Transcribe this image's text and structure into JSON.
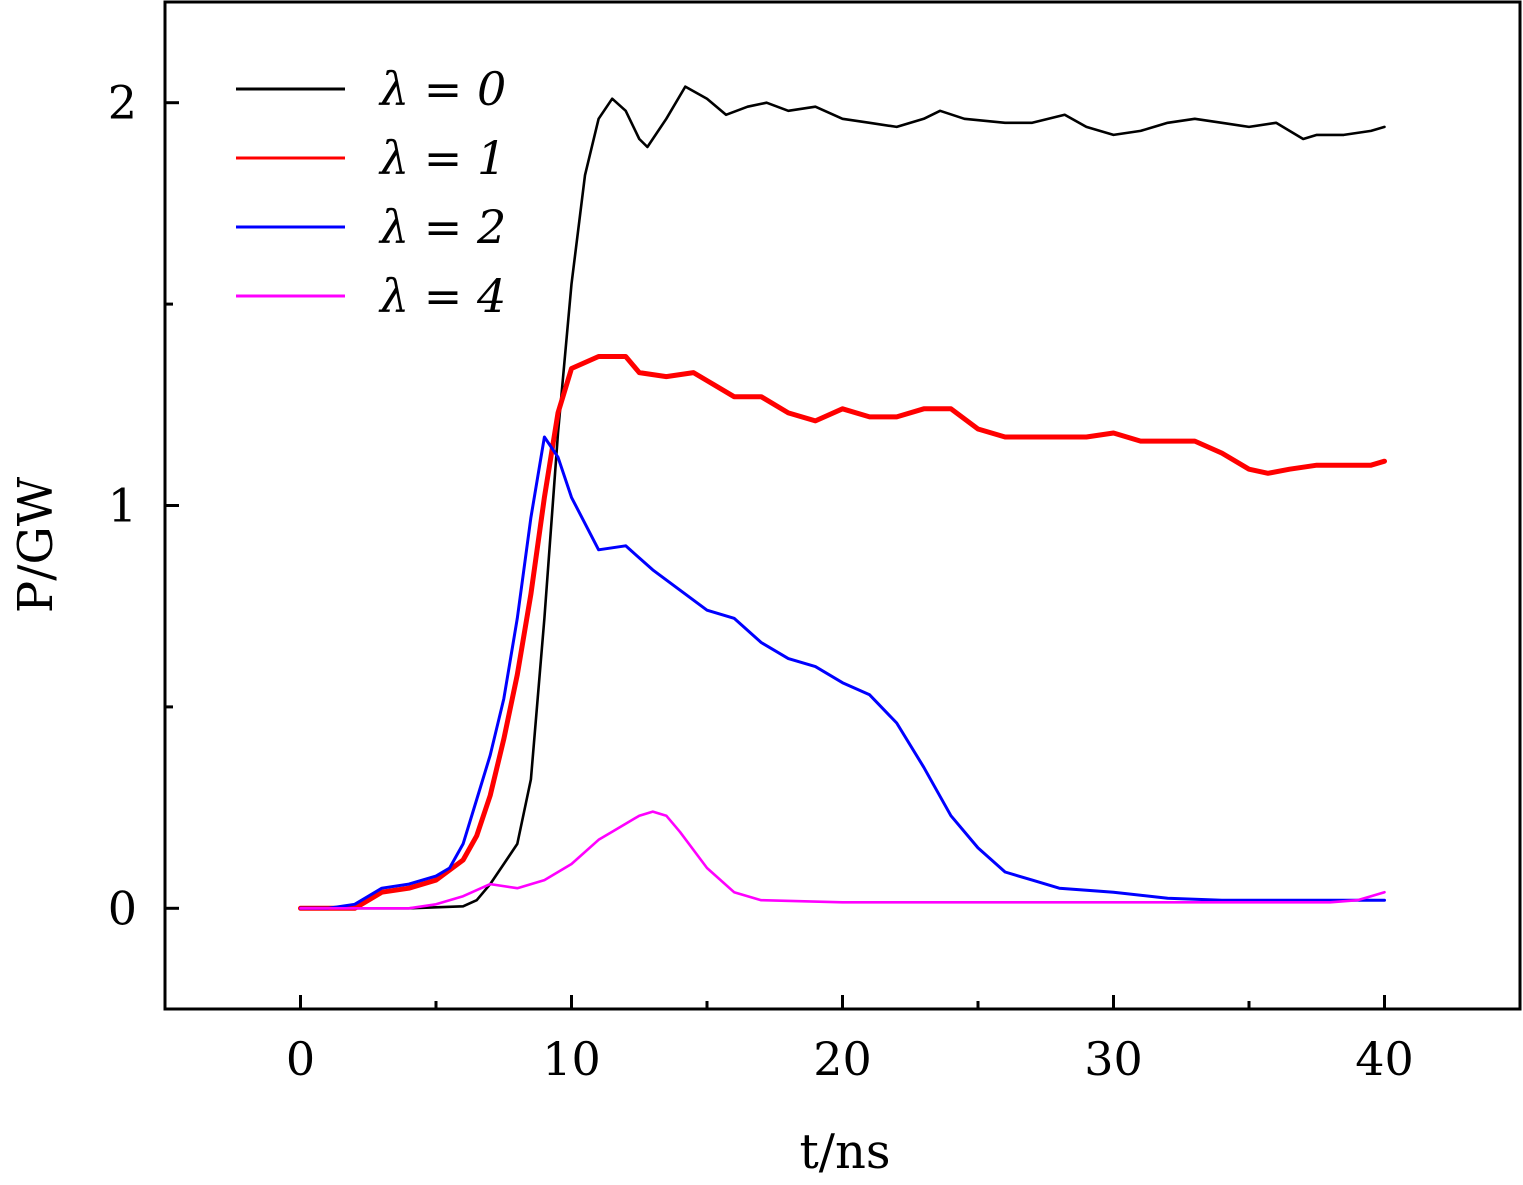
{
  "chart_data": {
    "type": "line",
    "xlabel": "t/ns",
    "ylabel": "P/GW",
    "xlim": [
      -5,
      45
    ],
    "ylim": [
      -0.25,
      2.25
    ],
    "x_ticks": [
      0,
      10,
      20,
      30,
      40
    ],
    "x_minor_ticks": [
      5,
      15,
      25,
      35
    ],
    "y_ticks": [
      0,
      1,
      2
    ],
    "y_minor_ticks": [
      0.5,
      1.5
    ],
    "legend": "top-left",
    "grid": false,
    "series": [
      {
        "name": "λ = 0",
        "color": "#000000",
        "x": [
          0,
          2,
          4,
          6,
          6.5,
          7,
          7.5,
          8,
          8.5,
          9,
          9.5,
          10,
          10.5,
          11,
          11.5,
          12,
          12.5,
          12.8,
          13.5,
          14.2,
          15,
          15.7,
          16.5,
          17.2,
          18,
          19,
          20,
          21,
          22,
          23,
          23.6,
          24.5,
          26,
          27,
          28.2,
          29,
          30,
          31,
          32,
          33,
          34,
          35,
          36,
          37,
          37.5,
          38.5,
          39.5,
          40
        ],
        "y": [
          0,
          0,
          0,
          0.005,
          0.02,
          0.06,
          0.11,
          0.16,
          0.32,
          0.72,
          1.18,
          1.55,
          1.82,
          1.96,
          2.01,
          1.98,
          1.91,
          1.89,
          1.96,
          2.04,
          2.01,
          1.97,
          1.99,
          2.0,
          1.98,
          1.99,
          1.96,
          1.95,
          1.94,
          1.96,
          1.98,
          1.96,
          1.95,
          1.95,
          1.97,
          1.94,
          1.92,
          1.93,
          1.95,
          1.96,
          1.95,
          1.94,
          1.95,
          1.91,
          1.92,
          1.92,
          1.93,
          1.94
        ]
      },
      {
        "name": "λ = 1",
        "color": "#ff0000",
        "x": [
          0,
          1,
          2,
          3,
          4,
          5,
          6,
          6.5,
          7,
          7.5,
          8,
          8.5,
          9,
          9.5,
          10,
          11,
          12,
          12.5,
          13.5,
          14.5,
          15,
          16,
          17,
          18,
          19,
          20,
          21,
          22,
          23,
          24,
          25,
          26,
          27,
          28,
          29,
          30,
          31,
          32,
          33,
          34,
          35,
          35.7,
          36.5,
          37.5,
          38.5,
          39.5,
          40
        ],
        "y": [
          0,
          0,
          0,
          0.04,
          0.05,
          0.07,
          0.12,
          0.18,
          0.28,
          0.42,
          0.58,
          0.78,
          1.02,
          1.23,
          1.34,
          1.37,
          1.37,
          1.33,
          1.32,
          1.33,
          1.31,
          1.27,
          1.27,
          1.23,
          1.21,
          1.24,
          1.22,
          1.22,
          1.24,
          1.24,
          1.19,
          1.17,
          1.17,
          1.17,
          1.17,
          1.18,
          1.16,
          1.16,
          1.16,
          1.13,
          1.09,
          1.08,
          1.09,
          1.1,
          1.1,
          1.1,
          1.11
        ]
      },
      {
        "name": "λ = 2",
        "color": "#0000ff",
        "x": [
          0,
          1,
          2,
          3,
          4,
          5,
          5.5,
          6,
          6.5,
          7,
          7.5,
          8,
          8.5,
          9,
          9.5,
          10,
          11,
          12,
          13,
          14,
          15,
          16,
          17,
          18,
          19,
          20,
          21,
          22,
          23,
          24,
          25,
          26,
          27,
          28,
          30,
          32,
          34,
          36,
          38,
          40
        ],
        "y": [
          0,
          0,
          0.01,
          0.05,
          0.06,
          0.08,
          0.1,
          0.16,
          0.27,
          0.38,
          0.52,
          0.72,
          0.97,
          1.17,
          1.12,
          1.02,
          0.89,
          0.9,
          0.84,
          0.79,
          0.74,
          0.72,
          0.66,
          0.62,
          0.6,
          0.56,
          0.53,
          0.46,
          0.35,
          0.23,
          0.15,
          0.09,
          0.07,
          0.05,
          0.04,
          0.025,
          0.02,
          0.02,
          0.02,
          0.02
        ]
      },
      {
        "name": "λ = 4",
        "color": "#ff00ff",
        "x": [
          0,
          2,
          4,
          5,
          6,
          7,
          8,
          9,
          10,
          11,
          11.5,
          12,
          12.5,
          13,
          13.5,
          14,
          15,
          16,
          17,
          20,
          25,
          30,
          35,
          38,
          39,
          39.5,
          40
        ],
        "y": [
          0,
          0,
          0,
          0.01,
          0.03,
          0.06,
          0.05,
          0.07,
          0.11,
          0.17,
          0.19,
          0.21,
          0.23,
          0.24,
          0.23,
          0.19,
          0.1,
          0.04,
          0.02,
          0.015,
          0.015,
          0.015,
          0.015,
          0.015,
          0.02,
          0.03,
          0.04
        ]
      }
    ]
  }
}
